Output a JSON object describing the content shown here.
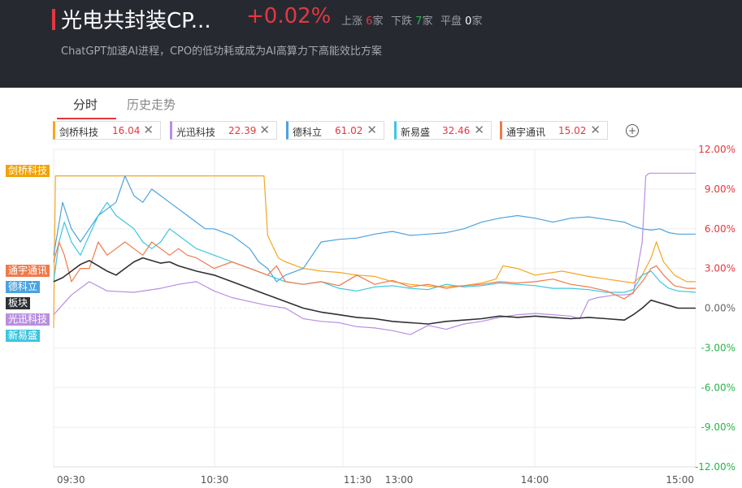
{
  "header": {
    "title": "光电共封装CP...",
    "change": "+0.02%",
    "up_label": "上涨",
    "up_count": "6",
    "up_unit": "家",
    "down_label": "下跌",
    "down_count": "7",
    "down_unit": "家",
    "flat_label": "平盘",
    "flat_count": "0",
    "flat_unit": "家",
    "subtitle": "ChatGPT加速AI进程，CPO的低功耗或成为AI高算力下高能效比方案"
  },
  "tabs": [
    {
      "label": "分时",
      "active": true
    },
    {
      "label": "历史走势",
      "active": false
    }
  ],
  "stock_chips": [
    {
      "name": "剑桥科技",
      "value": "16.04",
      "color": "#f5a623"
    },
    {
      "name": "光迅科技",
      "value": "22.39",
      "color": "#b98ee0"
    },
    {
      "name": "德科立",
      "value": "61.02",
      "color": "#4aa3df"
    },
    {
      "name": "新易盛",
      "value": "32.46",
      "color": "#3dc6e0"
    },
    {
      "name": "通宇通讯",
      "value": "15.02",
      "color": "#f07a4a"
    }
  ],
  "chip_close_icon": "close-icon",
  "add_icon": "plus-circle-icon",
  "line_labels": [
    {
      "text": "剑桥科技",
      "color": "#f0a30a"
    },
    {
      "text": "通宇通讯",
      "color": "#f07a4a"
    },
    {
      "text": "德科立",
      "color": "#4aa3df"
    },
    {
      "text": "板块",
      "color": "#2f3033"
    },
    {
      "text": "光迅科技",
      "color": "#b98ee0"
    },
    {
      "text": "新易盛",
      "color": "#3dc6e0"
    }
  ],
  "chart_data": {
    "type": "line",
    "x_ticks": [
      "09:30",
      "10:30",
      "11:30",
      "13:00",
      "14:00",
      "15:00"
    ],
    "y_ticks": [
      "12.00%",
      "9.00%",
      "6.00%",
      "3.00%",
      "0.00%",
      "-3.00%",
      "-6.00%",
      "-9.00%",
      "-12.00%"
    ],
    "ylim": [
      -12,
      12
    ],
    "grid": true,
    "colors": {
      "positive": "#e3383f",
      "negative": "#2bb24c",
      "zero": "#666666"
    },
    "series": [
      {
        "name": "剑桥科技",
        "color": "#f5a623",
        "points": [
          [
            0,
            -1.5
          ],
          [
            1,
            10
          ],
          [
            30,
            10
          ],
          [
            60,
            10
          ],
          [
            90,
            10
          ],
          [
            118,
            10
          ],
          [
            120,
            5.5
          ],
          [
            126,
            3.8
          ],
          [
            130,
            3.5
          ],
          [
            140,
            3
          ],
          [
            150,
            2.8
          ],
          [
            160,
            2.7
          ],
          [
            170,
            2.5
          ],
          [
            180,
            2.4
          ],
          [
            190,
            2
          ],
          [
            200,
            1.8
          ],
          [
            215,
            1.6
          ],
          [
            230,
            1.7
          ],
          [
            240,
            1.9
          ],
          [
            248,
            2.2
          ],
          [
            252,
            3.2
          ],
          [
            260,
            3
          ],
          [
            270,
            2.5
          ],
          [
            285,
            2.8
          ],
          [
            300,
            2.4
          ],
          [
            310,
            2.2
          ],
          [
            320,
            2
          ],
          [
            325,
            1.9
          ],
          [
            330,
            2.5
          ],
          [
            335,
            3.8
          ],
          [
            338,
            5
          ],
          [
            342,
            3.5
          ],
          [
            348,
            2.5
          ],
          [
            355,
            2
          ],
          [
            360,
            2
          ]
        ]
      },
      {
        "name": "光迅科技",
        "color": "#b98ee0",
        "points": [
          [
            0,
            -0.5
          ],
          [
            10,
            1
          ],
          [
            20,
            2
          ],
          [
            30,
            1.3
          ],
          [
            45,
            1.2
          ],
          [
            60,
            1.5
          ],
          [
            70,
            1.8
          ],
          [
            80,
            2
          ],
          [
            90,
            1.3
          ],
          [
            100,
            0.8
          ],
          [
            110,
            0.5
          ],
          [
            120,
            0.2
          ],
          [
            130,
            0
          ],
          [
            140,
            -0.8
          ],
          [
            150,
            -1
          ],
          [
            160,
            -1.1
          ],
          [
            170,
            -1.4
          ],
          [
            180,
            -1.5
          ],
          [
            190,
            -1.7
          ],
          [
            200,
            -2
          ],
          [
            210,
            -1.3
          ],
          [
            220,
            -1.6
          ],
          [
            230,
            -1.2
          ],
          [
            240,
            -1
          ],
          [
            250,
            -0.7
          ],
          [
            260,
            -0.5
          ],
          [
            270,
            -0.4
          ],
          [
            280,
            -0.5
          ],
          [
            290,
            -0.6
          ],
          [
            295,
            -0.8
          ],
          [
            300,
            0.6
          ],
          [
            305,
            0.8
          ],
          [
            310,
            0.9
          ],
          [
            315,
            1
          ],
          [
            320,
            1
          ],
          [
            325,
            1.1
          ],
          [
            330,
            5
          ],
          [
            332,
            10
          ],
          [
            334,
            10.2
          ],
          [
            340,
            10.2
          ],
          [
            350,
            10.2
          ],
          [
            360,
            10.2
          ]
        ]
      },
      {
        "name": "德科立",
        "color": "#4aa3df",
        "points": [
          [
            0,
            4
          ],
          [
            5,
            8
          ],
          [
            10,
            6
          ],
          [
            15,
            5
          ],
          [
            20,
            6
          ],
          [
            25,
            7
          ],
          [
            30,
            7.5
          ],
          [
            35,
            8
          ],
          [
            40,
            10
          ],
          [
            45,
            8.5
          ],
          [
            50,
            8
          ],
          [
            55,
            9
          ],
          [
            60,
            8.5
          ],
          [
            65,
            8
          ],
          [
            70,
            7.5
          ],
          [
            75,
            7
          ],
          [
            80,
            6.5
          ],
          [
            85,
            6
          ],
          [
            90,
            6
          ],
          [
            100,
            5.5
          ],
          [
            110,
            4.5
          ],
          [
            115,
            3.5
          ],
          [
            120,
            3
          ],
          [
            125,
            2
          ],
          [
            130,
            2.5
          ],
          [
            140,
            3
          ],
          [
            145,
            4
          ],
          [
            150,
            5
          ],
          [
            160,
            5.2
          ],
          [
            170,
            5.3
          ],
          [
            180,
            5.6
          ],
          [
            190,
            5.8
          ],
          [
            200,
            5.5
          ],
          [
            210,
            5.6
          ],
          [
            220,
            5.7
          ],
          [
            230,
            6
          ],
          [
            240,
            6.5
          ],
          [
            250,
            6.8
          ],
          [
            260,
            7
          ],
          [
            270,
            6.8
          ],
          [
            280,
            6.5
          ],
          [
            290,
            6.8
          ],
          [
            300,
            6.9
          ],
          [
            310,
            6.7
          ],
          [
            320,
            6.5
          ],
          [
            325,
            6.2
          ],
          [
            330,
            6
          ],
          [
            335,
            5.9
          ],
          [
            340,
            6
          ],
          [
            345,
            5.7
          ],
          [
            350,
            5.6
          ],
          [
            360,
            5.6
          ]
        ]
      },
      {
        "name": "新易盛",
        "color": "#3dc6e0",
        "points": [
          [
            0,
            2
          ],
          [
            3,
            5
          ],
          [
            6,
            6.5
          ],
          [
            10,
            5
          ],
          [
            15,
            4
          ],
          [
            20,
            5.5
          ],
          [
            25,
            7
          ],
          [
            30,
            8
          ],
          [
            35,
            7
          ],
          [
            40,
            6.5
          ],
          [
            45,
            6
          ],
          [
            50,
            5
          ],
          [
            55,
            4.5
          ],
          [
            60,
            5
          ],
          [
            65,
            6
          ],
          [
            70,
            5.5
          ],
          [
            75,
            5
          ],
          [
            80,
            4.5
          ],
          [
            90,
            4
          ],
          [
            100,
            3.5
          ],
          [
            110,
            3
          ],
          [
            120,
            2.5
          ],
          [
            130,
            2
          ],
          [
            140,
            1.8
          ],
          [
            150,
            2
          ],
          [
            160,
            1.5
          ],
          [
            170,
            1.3
          ],
          [
            180,
            1.6
          ],
          [
            190,
            1.7
          ],
          [
            200,
            1.5
          ],
          [
            210,
            1.4
          ],
          [
            220,
            1.8
          ],
          [
            230,
            1.6
          ],
          [
            240,
            1.7
          ],
          [
            250,
            1.9
          ],
          [
            260,
            1.8
          ],
          [
            270,
            1.7
          ],
          [
            280,
            1.5
          ],
          [
            290,
            1.5
          ],
          [
            300,
            1.4
          ],
          [
            310,
            1.2
          ],
          [
            320,
            1.2
          ],
          [
            325,
            1.4
          ],
          [
            330,
            2.5
          ],
          [
            335,
            2.8
          ],
          [
            340,
            2
          ],
          [
            345,
            1.5
          ],
          [
            350,
            1.3
          ],
          [
            360,
            1.2
          ]
        ]
      },
      {
        "name": "通宇通讯",
        "color": "#f07a4a",
        "points": [
          [
            0,
            3.5
          ],
          [
            3,
            5
          ],
          [
            6,
            4
          ],
          [
            10,
            2
          ],
          [
            15,
            3
          ],
          [
            20,
            3
          ],
          [
            25,
            5
          ],
          [
            30,
            4
          ],
          [
            35,
            4.5
          ],
          [
            40,
            5
          ],
          [
            45,
            4.5
          ],
          [
            50,
            4
          ],
          [
            55,
            5
          ],
          [
            60,
            4.5
          ],
          [
            65,
            4
          ],
          [
            70,
            4.5
          ],
          [
            75,
            4
          ],
          [
            80,
            3.8
          ],
          [
            90,
            3
          ],
          [
            100,
            3.5
          ],
          [
            110,
            3
          ],
          [
            120,
            2.5
          ],
          [
            125,
            3.2
          ],
          [
            130,
            2
          ],
          [
            140,
            1.8
          ],
          [
            150,
            2
          ],
          [
            160,
            1.7
          ],
          [
            170,
            2.5
          ],
          [
            180,
            1.8
          ],
          [
            190,
            2.1
          ],
          [
            200,
            1.6
          ],
          [
            210,
            1.8
          ],
          [
            220,
            1.5
          ],
          [
            230,
            1.7
          ],
          [
            240,
            1.8
          ],
          [
            250,
            2
          ],
          [
            260,
            1.9
          ],
          [
            270,
            2
          ],
          [
            280,
            2.2
          ],
          [
            290,
            1.8
          ],
          [
            300,
            1.6
          ],
          [
            310,
            1.3
          ],
          [
            320,
            0.7
          ],
          [
            325,
            1.2
          ],
          [
            330,
            2
          ],
          [
            335,
            3
          ],
          [
            338,
            3.2
          ],
          [
            342,
            2.5
          ],
          [
            348,
            1.7
          ],
          [
            355,
            1.5
          ],
          [
            360,
            1.5
          ]
        ]
      },
      {
        "name": "板块",
        "color": "#2f3033",
        "points": [
          [
            0,
            2
          ],
          [
            5,
            2.3
          ],
          [
            10,
            2.8
          ],
          [
            15,
            3.3
          ],
          [
            20,
            3.6
          ],
          [
            25,
            3.2
          ],
          [
            30,
            2.8
          ],
          [
            35,
            2.5
          ],
          [
            40,
            3
          ],
          [
            45,
            3.5
          ],
          [
            50,
            3.8
          ],
          [
            55,
            3.6
          ],
          [
            60,
            3.4
          ],
          [
            65,
            3.5
          ],
          [
            70,
            3.2
          ],
          [
            80,
            2.8
          ],
          [
            90,
            2.5
          ],
          [
            100,
            2
          ],
          [
            110,
            1.5
          ],
          [
            120,
            1
          ],
          [
            130,
            0.5
          ],
          [
            140,
            0
          ],
          [
            150,
            -0.3
          ],
          [
            160,
            -0.5
          ],
          [
            170,
            -0.7
          ],
          [
            180,
            -0.8
          ],
          [
            190,
            -1
          ],
          [
            200,
            -1.1
          ],
          [
            210,
            -1.2
          ],
          [
            220,
            -1
          ],
          [
            230,
            -0.9
          ],
          [
            240,
            -0.8
          ],
          [
            250,
            -0.6
          ],
          [
            260,
            -0.7
          ],
          [
            270,
            -0.6
          ],
          [
            280,
            -0.7
          ],
          [
            290,
            -0.8
          ],
          [
            300,
            -0.7
          ],
          [
            310,
            -0.8
          ],
          [
            320,
            -0.9
          ],
          [
            325,
            -0.5
          ],
          [
            330,
            0
          ],
          [
            335,
            0.6
          ],
          [
            340,
            0.4
          ],
          [
            345,
            0.2
          ],
          [
            350,
            0
          ],
          [
            360,
            0
          ]
        ]
      }
    ]
  }
}
